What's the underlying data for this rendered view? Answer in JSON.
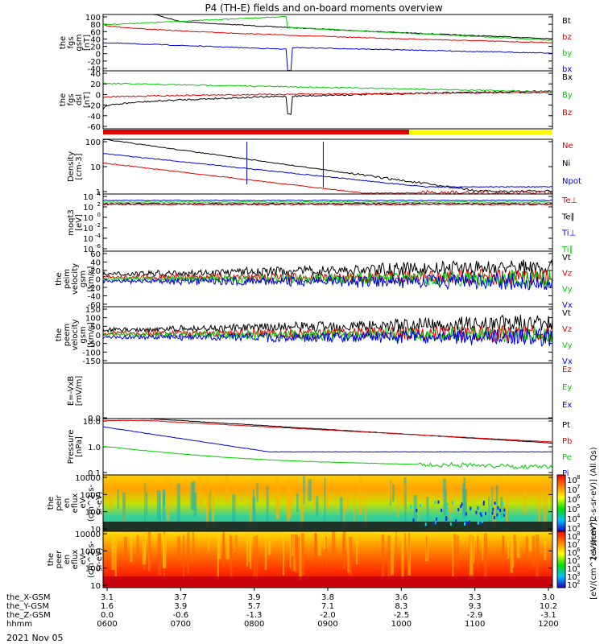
{
  "title": "P4 (TH-E) fields and on-board moments overview",
  "date_label": "2021 Nov 05",
  "colors": {
    "black": "#000000",
    "red": "#e00000",
    "green": "#00cc00",
    "blue": "#0000e0",
    "yellow": "#ffff00"
  },
  "chart_data": [
    {
      "id": "fgs_gsm",
      "type": "line",
      "ylabel": [
        "the",
        "fgs",
        "gsm",
        "[nT]"
      ],
      "yticks": [
        "100",
        "80",
        "60",
        "40",
        "20",
        "0",
        "-20",
        "-40"
      ],
      "ylim": [
        -40,
        100
      ],
      "series": [
        {
          "name": "Bt",
          "color": "black"
        },
        {
          "name": "bz",
          "color": "red"
        },
        {
          "name": "by",
          "color": "green"
        },
        {
          "name": "bx",
          "color": "blue"
        }
      ]
    },
    {
      "id": "fgs_dsl",
      "type": "line",
      "ylabel": [
        "the",
        "fgs",
        "dsl",
        "[nT]"
      ],
      "yticks": [
        "40",
        "20",
        "0",
        "-20",
        "-40",
        "-60"
      ],
      "ylim": [
        -70,
        45
      ],
      "series": [
        {
          "name": "Bx",
          "color": "black"
        },
        {
          "name": "By",
          "color": "green"
        },
        {
          "name": "Bz",
          "color": "red"
        }
      ]
    },
    {
      "id": "density",
      "type": "line",
      "ylabel": [
        "Density",
        "[cm-3]"
      ],
      "log": true,
      "yticks": [
        "100",
        "10",
        "1"
      ],
      "ylim": [
        1,
        200
      ],
      "series": [
        {
          "name": "Ne",
          "color": "red"
        },
        {
          "name": "Ni",
          "color": "black"
        },
        {
          "name": "Npot",
          "color": "blue"
        }
      ]
    },
    {
      "id": "temperature",
      "type": "line",
      "ylabel": [
        "moqt3",
        "[eV]"
      ],
      "log": true,
      "yticks": [
        "10",
        "10",
        "10",
        "10",
        "10",
        "10"
      ],
      "ytick_exponents": [
        "4",
        "2",
        "0",
        "-2",
        "-4",
        "-6"
      ],
      "series": [
        {
          "name": "Te⊥",
          "color": "red"
        },
        {
          "name": "Te∥",
          "color": "black"
        },
        {
          "name": "Ti⊥",
          "color": "blue"
        },
        {
          "name": "Ti∥",
          "color": "green"
        }
      ]
    },
    {
      "id": "peim_velocity",
      "type": "line",
      "ylabel": [
        "the",
        "peim",
        "velocity",
        "gsm",
        "[km/s]"
      ],
      "yticks": [
        "60",
        "40",
        "20",
        "0",
        "-20",
        "-40",
        "-60"
      ],
      "ylim": [
        -60,
        60
      ],
      "series": [
        {
          "name": "Vt",
          "color": "black"
        },
        {
          "name": "Vz",
          "color": "red"
        },
        {
          "name": "Vy",
          "color": "green"
        },
        {
          "name": "Vx",
          "color": "blue"
        }
      ]
    },
    {
      "id": "peem_velocity",
      "type": "line",
      "ylabel": [
        "the",
        "peem",
        "velocity",
        "gsm",
        "[km/s]"
      ],
      "yticks": [
        "150",
        "100",
        "50",
        "0",
        "-50",
        "-100",
        "-150"
      ],
      "ylim": [
        -150,
        150
      ],
      "series": [
        {
          "name": "Vt",
          "color": "black"
        },
        {
          "name": "Vz",
          "color": "red"
        },
        {
          "name": "Vy",
          "color": "green"
        },
        {
          "name": "Vx",
          "color": "blue"
        }
      ]
    },
    {
      "id": "efield",
      "type": "line",
      "ylabel": [
        "E=-VxB",
        "[mV/m]"
      ],
      "yticks": [
        "0.0"
      ],
      "series": [
        {
          "name": "Ez",
          "color": "red"
        },
        {
          "name": "Ey",
          "color": "green"
        },
        {
          "name": "Ex",
          "color": "blue"
        }
      ]
    },
    {
      "id": "pressure",
      "type": "line",
      "ylabel": [
        "Pressure",
        "[nPa]"
      ],
      "log": true,
      "yticks": [
        "10.0",
        "1.0",
        "0.1"
      ],
      "ylim": [
        0.01,
        40
      ],
      "series": [
        {
          "name": "Pt",
          "color": "black"
        },
        {
          "name": "Pb",
          "color": "red"
        },
        {
          "name": "Pe",
          "color": "green"
        },
        {
          "name": "Pi",
          "color": "blue"
        }
      ]
    },
    {
      "id": "peir_spectrogram",
      "type": "heatmap",
      "ylabel": [
        "the",
        "peir",
        "en",
        "eflux",
        "eV",
        "(cm^2-s-",
        "sr-eV)"
      ],
      "yticks": [
        "10000",
        "1000",
        "100",
        "10"
      ],
      "colorbar_label": "[eV/(cm^2-s-sr-eV)] (All Qs)",
      "colorbar_exponents": [
        "8",
        "7",
        "6",
        "5",
        "4",
        "3"
      ]
    },
    {
      "id": "peer_spectrogram",
      "type": "heatmap",
      "ylabel": [
        "the",
        "peer",
        "en",
        "eflux",
        "eV",
        "(cm^2-s-",
        "sr-eV)"
      ],
      "yticks": [
        "10000",
        "1000",
        "100",
        "10"
      ],
      "colorbar_label": "[eV/(cm^2-s-sr-eV)]",
      "colorbar_exponents": [
        "8",
        "7",
        "6",
        "5",
        "4",
        "3",
        "2"
      ]
    }
  ],
  "xaxis": {
    "row_labels": [
      "the_X-GSM",
      "the_Y-GSM",
      "the_Z-GSM",
      "hhmm"
    ],
    "columns": [
      {
        "x": "3.1",
        "y": "1.6",
        "z": "0.0",
        "hhmm": "0600"
      },
      {
        "x": "3.7",
        "y": "3.9",
        "z": "-0.6",
        "hhmm": "0700"
      },
      {
        "x": "3.9",
        "y": "5.7",
        "z": "-1.3",
        "hhmm": "0800"
      },
      {
        "x": "3.8",
        "y": "7.1",
        "z": "-2.0",
        "hhmm": "0900"
      },
      {
        "x": "3.6",
        "y": "8.3",
        "z": "-2.5",
        "hhmm": "1000"
      },
      {
        "x": "3.3",
        "y": "9.3",
        "z": "-2.9",
        "hhmm": "1100"
      },
      {
        "x": "3.0",
        "y": "10.2",
        "z": "-3.1",
        "hhmm": "1200"
      }
    ]
  }
}
